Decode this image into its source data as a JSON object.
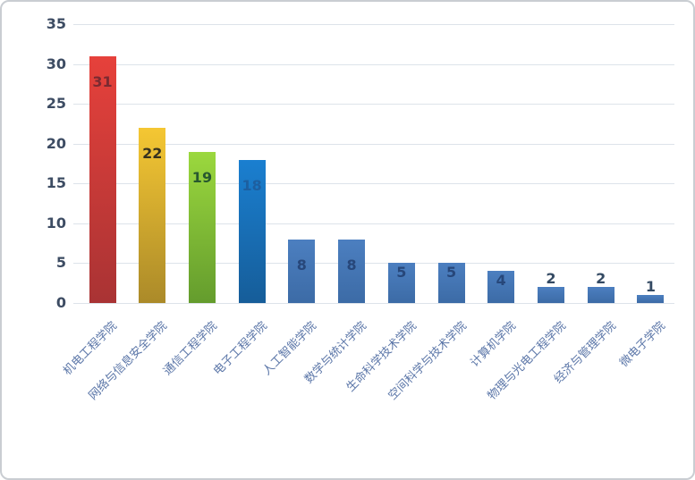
{
  "chart_data": {
    "type": "bar",
    "title": "",
    "xlabel": "",
    "ylabel": "",
    "ylim": [
      0,
      35
    ],
    "grid": true,
    "legend": "none",
    "yticks": [
      0,
      5,
      10,
      15,
      20,
      25,
      30,
      35
    ],
    "categories": [
      "机电工程学院",
      "网络与信息安全学院",
      "通信工程学院",
      "电子工程学院",
      "人工智能学院",
      "数学与统计学院",
      "生命科学技术学院",
      "空间科学与技术学院",
      "计算机学院",
      "物理与光电工程学院",
      "经济与管理学院",
      "微电子学院"
    ],
    "values": [
      31,
      22,
      19,
      18,
      8,
      8,
      5,
      5,
      4,
      2,
      2,
      1
    ],
    "bar_colors": [
      {
        "top": "#e6413b",
        "bottom": "#a93334",
        "label": "#7a2a31"
      },
      {
        "top": "#f5c733",
        "bottom": "#ab8a29",
        "label": "#37321f"
      },
      {
        "top": "#9bd83e",
        "bottom": "#649c2d",
        "label": "#28582f"
      },
      {
        "top": "#1a7fd0",
        "bottom": "#165d99",
        "label": "#1d5fa0"
      },
      {
        "top": "#4c7fc0",
        "bottom": "#3c6ba6",
        "label": "#27477a"
      },
      {
        "top": "#4c7fc0",
        "bottom": "#3c6ba6",
        "label": "#27477a"
      },
      {
        "top": "#4c7fc0",
        "bottom": "#3c6ba6",
        "label": "#27477a"
      },
      {
        "top": "#4c7fc0",
        "bottom": "#3c6ba6",
        "label": "#27477a"
      },
      {
        "top": "#4c7fc0",
        "bottom": "#3c6ba6",
        "label": "#27477a"
      },
      {
        "top": "#4c7fc0",
        "bottom": "#3c6ba6",
        "label": "#344a63"
      },
      {
        "top": "#4c7fc0",
        "bottom": "#3c6ba6",
        "label": "#344a63"
      },
      {
        "top": "#4c7fc0",
        "bottom": "#3c6ba6",
        "label": "#344a63"
      }
    ],
    "colors_meta": {
      "gridline": "#dde3ea",
      "axis_tick_text": "#3d4c63",
      "category_text": "#5b76a8",
      "frame_border": "#c9cdd2",
      "background": "#ffffff"
    }
  }
}
